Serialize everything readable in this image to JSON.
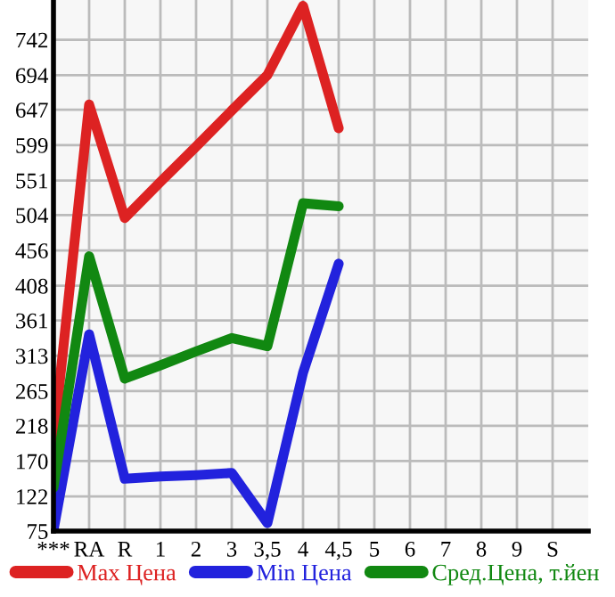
{
  "chart_data": {
    "type": "line",
    "categories": [
      "***",
      "RA",
      "R",
      "1",
      "2",
      "3",
      "3,5",
      "4",
      "4,5",
      "5",
      "6",
      "7",
      "8",
      "9",
      "S"
    ],
    "series": [
      {
        "name": "Max Цена",
        "color": "#dd2222",
        "values": [
          198,
          654,
          500,
          549,
          597,
          646,
          694,
          788,
          622,
          null,
          null,
          null,
          null,
          null,
          null
        ]
      },
      {
        "name": "Min Цена",
        "color": "#2222dd",
        "values": [
          76,
          342,
          146,
          149,
          151,
          154,
          86,
          290,
          438,
          null,
          null,
          null,
          null,
          null,
          null
        ]
      },
      {
        "name": "Сред.Цена, т.йен",
        "color": "#118811",
        "values": [
          134,
          448,
          282,
          300,
          319,
          337,
          326,
          520,
          516,
          null,
          null,
          null,
          null,
          null,
          null
        ]
      }
    ],
    "ylim": [
      75,
      796
    ],
    "yticks": [
      75,
      122,
      170,
      218,
      265,
      313,
      361,
      408,
      456,
      504,
      551,
      599,
      647,
      694,
      742
    ],
    "grid": true,
    "legend": "bottom",
    "marker": "none",
    "line_style": "solid"
  }
}
